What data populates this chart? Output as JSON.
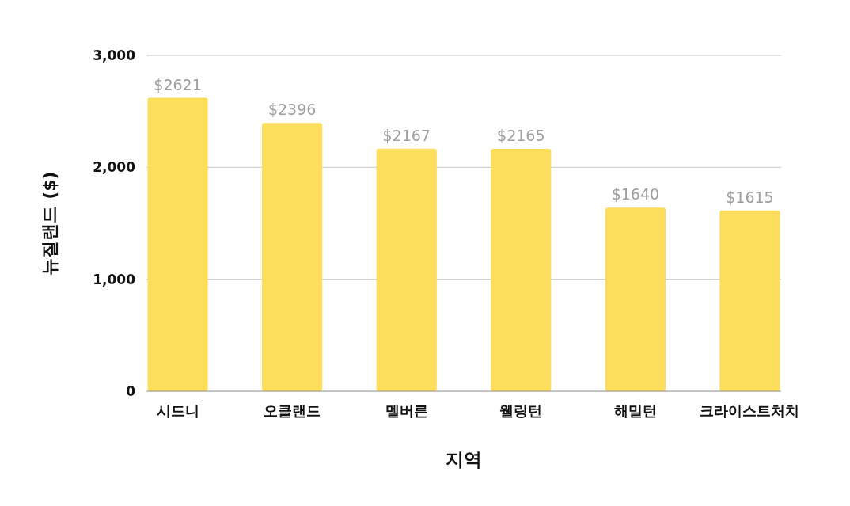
{
  "chart_data": {
    "type": "bar",
    "xlabel": "지역",
    "ylabel": "뉴질랜드 ($)",
    "categories": [
      "시드니",
      "오클랜드",
      "멜버른",
      "웰링턴",
      "해밀턴",
      "크라이스트처치"
    ],
    "values": [
      2621,
      2396,
      2167,
      2165,
      1640,
      1615
    ],
    "value_labels": [
      "$2621",
      "$2396",
      "$2167",
      "$2165",
      "$1640",
      "$1615"
    ],
    "color": "#fddd5c",
    "ylim": [
      0,
      3000
    ],
    "yticks": [
      {
        "value": 0,
        "label": "0"
      },
      {
        "value": 1000,
        "label": "1,000"
      },
      {
        "value": 2000,
        "label": "2,000"
      },
      {
        "value": 3000,
        "label": "3,000"
      }
    ],
    "grid": "y"
  }
}
